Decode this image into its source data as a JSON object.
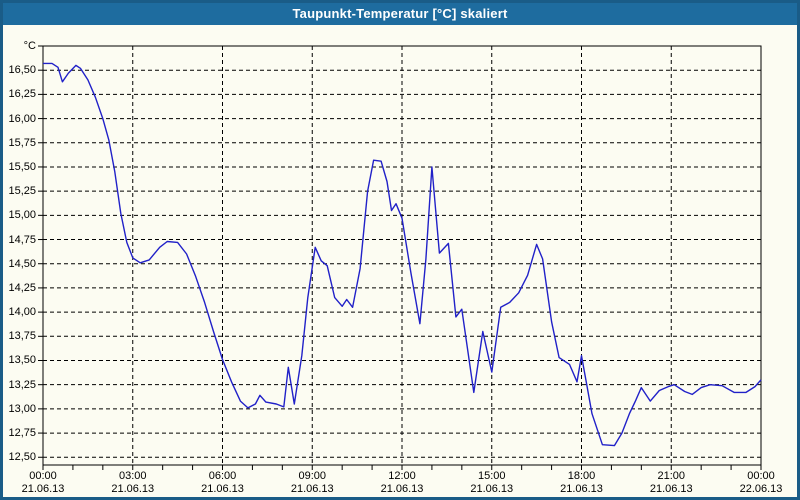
{
  "window": {
    "title": "Taupunkt-Temperatur [°C] skaliert"
  },
  "colors": {
    "titlebar_bg": "#1e6c9f",
    "titlebar_text": "#ffffff",
    "window_border": "#1a5c87",
    "background": "#fcfcf2",
    "line": "#2121c8",
    "grid": "#000000",
    "axis_text": "#000000"
  },
  "chart": {
    "y_unit": "°C",
    "y_tick_labels": [
      "16,50",
      "16,25",
      "16,00",
      "15,75",
      "15,50",
      "15,25",
      "15,00",
      "14,75",
      "14,50",
      "14,25",
      "14,00",
      "13,75",
      "13,50",
      "13,25",
      "13,00",
      "12,75",
      "12,50"
    ],
    "x_ticks": [
      {
        "time": "00:00",
        "date": "21.06.13"
      },
      {
        "time": "03:00",
        "date": "21.06.13"
      },
      {
        "time": "06:00",
        "date": "21.06.13"
      },
      {
        "time": "09:00",
        "date": "21.06.13"
      },
      {
        "time": "12:00",
        "date": "21.06.13"
      },
      {
        "time": "15:00",
        "date": "21.06.13"
      },
      {
        "time": "18:00",
        "date": "21.06.13"
      },
      {
        "time": "21:00",
        "date": "21.06.13"
      },
      {
        "time": "00:00",
        "date": "22.06.13"
      }
    ]
  },
  "chart_data": {
    "type": "line",
    "title": "Taupunkt-Temperatur [°C] skaliert",
    "ylabel": "°C",
    "ylim": [
      12.42,
      16.75
    ],
    "y_grid_step": 0.25,
    "x_hours_range": [
      0,
      24
    ],
    "x_major_grid_hours": 3,
    "x_minor_tick_hours": 1,
    "grid": "dashed",
    "legend": "none",
    "series": [
      {
        "name": "Taupunkt-Temperatur",
        "x_hours": [
          0,
          0.3,
          0.5,
          0.65,
          0.85,
          1.1,
          1.25,
          1.5,
          1.75,
          2.0,
          2.2,
          2.4,
          2.6,
          2.8,
          3.0,
          3.25,
          3.55,
          3.9,
          4.15,
          4.5,
          4.8,
          5.1,
          5.4,
          5.7,
          6.0,
          6.3,
          6.6,
          6.85,
          7.1,
          7.25,
          7.45,
          7.8,
          8.05,
          8.2,
          8.4,
          8.65,
          8.85,
          9.1,
          9.3,
          9.5,
          9.75,
          10.0,
          10.15,
          10.35,
          10.6,
          10.85,
          11.05,
          11.3,
          11.5,
          11.65,
          11.8,
          12.0,
          12.3,
          12.6,
          12.8,
          13.0,
          13.25,
          13.55,
          13.8,
          14.0,
          14.4,
          14.7,
          15.0,
          15.3,
          15.6,
          15.9,
          16.2,
          16.5,
          16.7,
          17.0,
          17.25,
          17.6,
          17.85,
          18.0,
          18.35,
          18.7,
          19.1,
          19.35,
          19.6,
          19.8,
          20.0,
          20.3,
          20.6,
          20.9,
          21.1,
          21.45,
          21.7,
          22.0,
          22.3,
          22.7,
          23.1,
          23.5,
          23.8,
          24.0
        ],
        "values": [
          16.57,
          16.57,
          16.53,
          16.38,
          16.47,
          16.55,
          16.52,
          16.4,
          16.22,
          16.0,
          15.78,
          15.45,
          15.02,
          14.72,
          14.56,
          14.51,
          14.54,
          14.67,
          14.73,
          14.72,
          14.6,
          14.37,
          14.1,
          13.8,
          13.51,
          13.28,
          13.08,
          13.01,
          13.05,
          13.14,
          13.07,
          13.05,
          13.02,
          13.43,
          13.05,
          13.55,
          14.15,
          14.67,
          14.53,
          14.48,
          14.15,
          14.06,
          14.13,
          14.05,
          14.45,
          15.25,
          15.57,
          15.56,
          15.35,
          15.05,
          15.12,
          14.97,
          14.4,
          13.88,
          14.55,
          15.5,
          14.61,
          14.71,
          13.95,
          14.03,
          13.17,
          13.8,
          13.38,
          14.05,
          14.1,
          14.2,
          14.38,
          14.7,
          14.55,
          13.9,
          13.53,
          13.46,
          13.28,
          13.55,
          12.95,
          12.63,
          12.62,
          12.75,
          12.95,
          13.08,
          13.22,
          13.08,
          13.19,
          13.23,
          13.25,
          13.18,
          13.15,
          13.22,
          13.25,
          13.24,
          13.17,
          13.17,
          13.23,
          13.3
        ]
      }
    ]
  }
}
